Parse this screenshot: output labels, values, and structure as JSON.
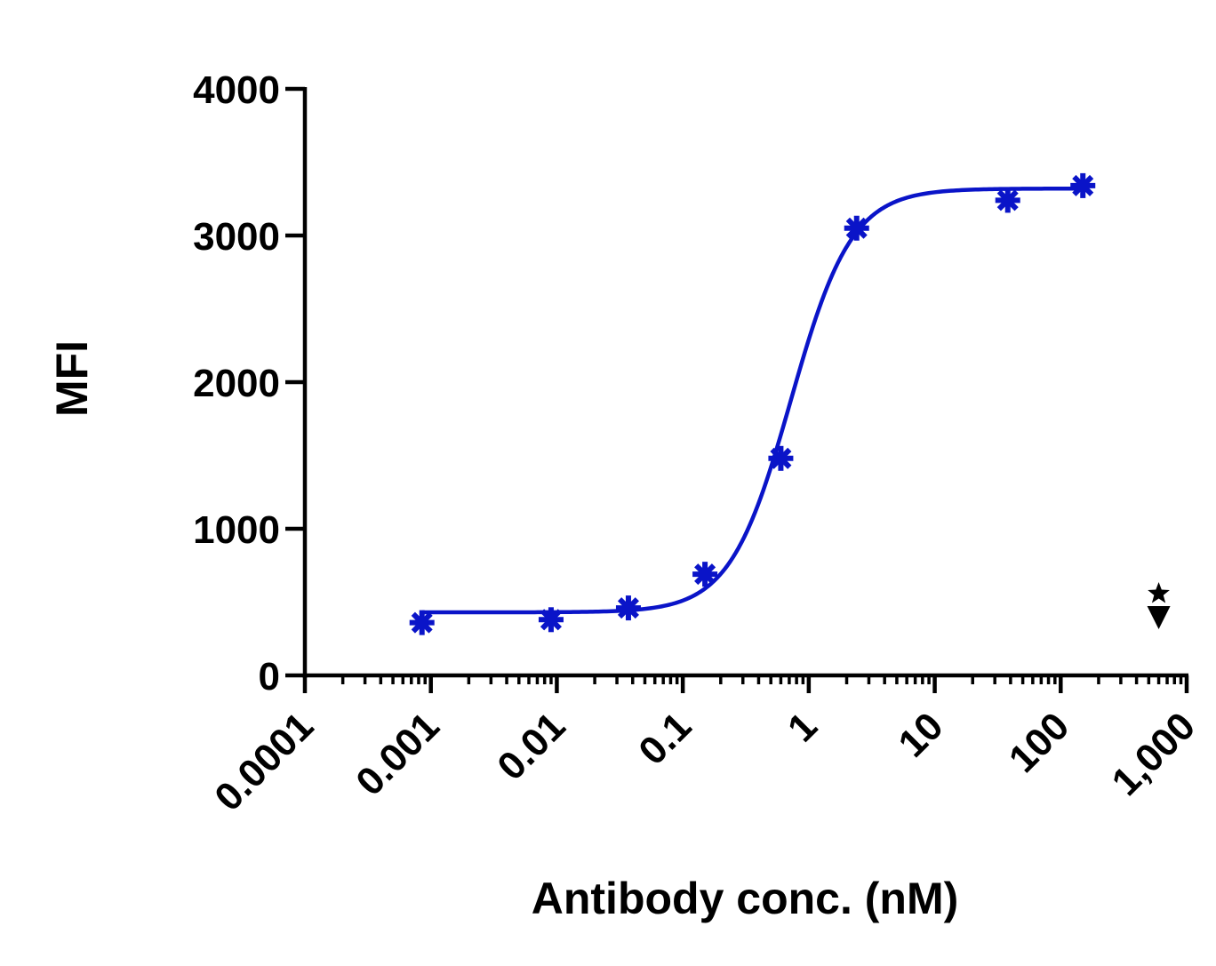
{
  "chart_data": {
    "type": "scatter",
    "xlabel": "Antibody conc. (nM)",
    "ylabel": "MFI",
    "x_scale": "log",
    "xlim": [
      0.0001,
      1000
    ],
    "ylim": [
      0,
      4000
    ],
    "x_tick_labels": [
      "0.0001",
      "0.001",
      "0.01",
      "0.1",
      "1",
      "10",
      "100",
      "1,000"
    ],
    "y_ticks": [
      0,
      1000,
      2000,
      3000,
      4000
    ],
    "y_tick_labels": [
      "0",
      "1000",
      "2000",
      "3000",
      "4000"
    ],
    "colors": {
      "series": "#0a14c8",
      "axis": "#000000",
      "marker_annotation": "#000000"
    },
    "series": [
      {
        "marker": "asterisk",
        "x": [
          0.00085,
          0.009,
          0.037,
          0.15,
          0.6,
          2.4,
          38,
          150
        ],
        "y": [
          360,
          380,
          460,
          690,
          1480,
          3050,
          3240,
          3340
        ]
      }
    ],
    "fit": {
      "type": "four-parameter logistic",
      "bottom": 430,
      "top": 3320,
      "ec50": 0.72,
      "hill": 1.8
    },
    "annotation": {
      "symbol": "star-above-down-triangle",
      "x": 600,
      "y": 400
    }
  }
}
